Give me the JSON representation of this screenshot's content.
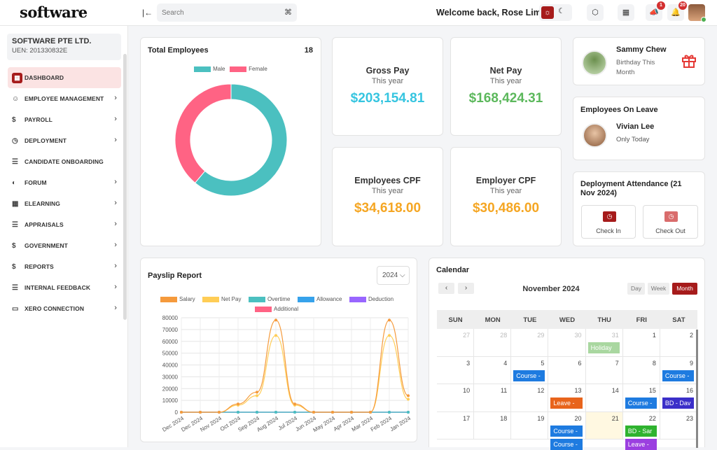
{
  "header": {
    "logo": "software",
    "search_placeholder": "Search",
    "search_shortcut": "⌘",
    "welcome": "Welcome back, Rose Lim!",
    "notif_count_1": "1",
    "notif_count_2": "20"
  },
  "company": {
    "name": "SOFTWARE PTE LTD.",
    "uen": "UEN: 201330832E"
  },
  "menu": [
    {
      "label": "DASHBOARD",
      "icon": "grid-icon",
      "glyph": "▦"
    },
    {
      "label": "EMPLOYEE MANAGEMENT",
      "icon": "users-icon",
      "glyph": "☺"
    },
    {
      "label": "PAYROLL",
      "icon": "dollar-icon",
      "glyph": "$"
    },
    {
      "label": "DEPLOYMENT",
      "icon": "clock-icon",
      "glyph": "◷"
    },
    {
      "label": "CANDIDATE ONBOARDING",
      "icon": "list-icon",
      "glyph": "☰"
    },
    {
      "label": "FORUM",
      "icon": "chat-icon",
      "glyph": "◐"
    },
    {
      "label": "ELEARNING",
      "icon": "apps-icon",
      "glyph": "▦"
    },
    {
      "label": "APPRAISALS",
      "icon": "list-icon",
      "glyph": "☰"
    },
    {
      "label": "GOVERNMENT",
      "icon": "dollar-icon",
      "glyph": "$"
    },
    {
      "label": "REPORTS",
      "icon": "dollar-icon",
      "glyph": "$"
    },
    {
      "label": "INTERNAL FEEDBACK",
      "icon": "list-icon",
      "glyph": "☰"
    },
    {
      "label": "XERO CONNECTION",
      "icon": "card-icon",
      "glyph": "▭"
    }
  ],
  "total_employees": {
    "title": "Total Employees",
    "count": "18",
    "legend": [
      {
        "name": "Male",
        "color": "#4bc0c0"
      },
      {
        "name": "Female",
        "color": "#ff6384"
      }
    ],
    "male": 11,
    "female": 7
  },
  "stats": [
    {
      "title": "Gross Pay",
      "sub": "This year",
      "value": "$203,154.81",
      "color": "#36c5e0"
    },
    {
      "title": "Net Pay",
      "sub": "This year",
      "value": "$168,424.31",
      "color": "#5cb85c"
    },
    {
      "title": "Employees CPF",
      "sub": "This year",
      "value": "$34,618.00",
      "color": "#f5a623"
    },
    {
      "title": "Employer CPF",
      "sub": "This year",
      "value": "$30,486.00",
      "color": "#f5a623"
    }
  ],
  "birthday": {
    "name": "Sammy Chew",
    "line1": "Birthday This",
    "line2": "Month"
  },
  "leave": {
    "title": "Employees On Leave",
    "name": "Vivian Lee",
    "sub": "Only Today"
  },
  "attendance": {
    "title1": "Deployment Attendance (21",
    "title2": "Nov 2024)",
    "check_in": "Check In",
    "check_out": "Check Out"
  },
  "chart_data": {
    "type": "line",
    "title": "Payslip Report",
    "year_select": "2024",
    "categories": [
      "Dec 2024",
      "Dec 2024",
      "Nov 2024",
      "Oct 2024",
      "Sep 2024",
      "Aug 2024",
      "Jul 2024",
      "Jun 2024",
      "May 2024",
      "Apr 2024",
      "Mar 2024",
      "Feb 2024",
      "Jan 2024"
    ],
    "ylim": [
      0,
      80000
    ],
    "yticks": [
      "80000",
      "70000",
      "60000",
      "50000",
      "40000",
      "30000",
      "20000",
      "10000",
      "0"
    ],
    "series": [
      {
        "name": "Salary",
        "color": "#f59a3c",
        "values": [
          0,
          0,
          0,
          7000,
          17000,
          78000,
          7000,
          0,
          0,
          0,
          0,
          78000,
          14000
        ]
      },
      {
        "name": "Net Pay",
        "color": "#ffcd56",
        "values": [
          0,
          0,
          0,
          6000,
          14000,
          65000,
          6000,
          0,
          0,
          0,
          0,
          65000,
          11000
        ]
      },
      {
        "name": "Overtime",
        "color": "#4bc0c0",
        "values": [
          0,
          0,
          0,
          0,
          0,
          0,
          0,
          0,
          0,
          0,
          0,
          0,
          0
        ]
      },
      {
        "name": "Allowance",
        "color": "#36a2eb",
        "values": [
          0,
          0,
          0,
          0,
          0,
          0,
          0,
          0,
          0,
          0,
          0,
          0,
          0
        ]
      },
      {
        "name": "Deduction",
        "color": "#9966ff",
        "values": [
          0,
          0,
          0,
          0,
          0,
          0,
          0,
          0,
          0,
          0,
          0,
          0,
          0
        ]
      },
      {
        "name": "Additional",
        "color": "#ff6384",
        "values": [
          0,
          0,
          0,
          0,
          0,
          0,
          0,
          0,
          0,
          0,
          0,
          0,
          0
        ]
      }
    ]
  },
  "calendar": {
    "title": "Calendar",
    "month": "November 2024",
    "views": [
      "Day",
      "Week",
      "Month"
    ],
    "days": [
      "SUN",
      "MON",
      "TUE",
      "WED",
      "THU",
      "FRI",
      "SAT"
    ],
    "weeks": [
      [
        "27",
        "28",
        "29",
        "30",
        "31",
        "1",
        "2"
      ],
      [
        "3",
        "4",
        "5",
        "6",
        "7",
        "8",
        "9"
      ],
      [
        "10",
        "11",
        "12",
        "13",
        "14",
        "15",
        "16"
      ],
      [
        "17",
        "18",
        "19",
        "20",
        "21",
        "22",
        "23"
      ]
    ],
    "events": [
      {
        "label": "Holiday",
        "week": 0,
        "day": 4,
        "slot": 0,
        "color": "#a9d7a0"
      },
      {
        "label": "Course -",
        "week": 1,
        "day": 2,
        "slot": 0,
        "color": "#1e7be0"
      },
      {
        "label": "Course -",
        "week": 1,
        "day": 6,
        "slot": 0,
        "color": "#1e7be0"
      },
      {
        "label": "Leave -",
        "week": 2,
        "day": 3,
        "slot": 0,
        "color": "#e8641c"
      },
      {
        "label": "Course -",
        "week": 2,
        "day": 5,
        "slot": 0,
        "color": "#1e7be0"
      },
      {
        "label": "BD - Dav",
        "week": 2,
        "day": 6,
        "slot": 0,
        "color": "#3b2fc9"
      },
      {
        "label": "Course -",
        "week": 3,
        "day": 3,
        "slot": 0,
        "color": "#1e7be0"
      },
      {
        "label": "BD - Sar",
        "week": 3,
        "day": 5,
        "slot": 0,
        "color": "#2fb32f"
      },
      {
        "label": "Course -",
        "week": 3,
        "day": 3,
        "slot": 1,
        "color": "#1e7be0"
      },
      {
        "label": "Leave -",
        "week": 3,
        "day": 5,
        "slot": 1,
        "color": "#9b3fe0"
      }
    ]
  }
}
